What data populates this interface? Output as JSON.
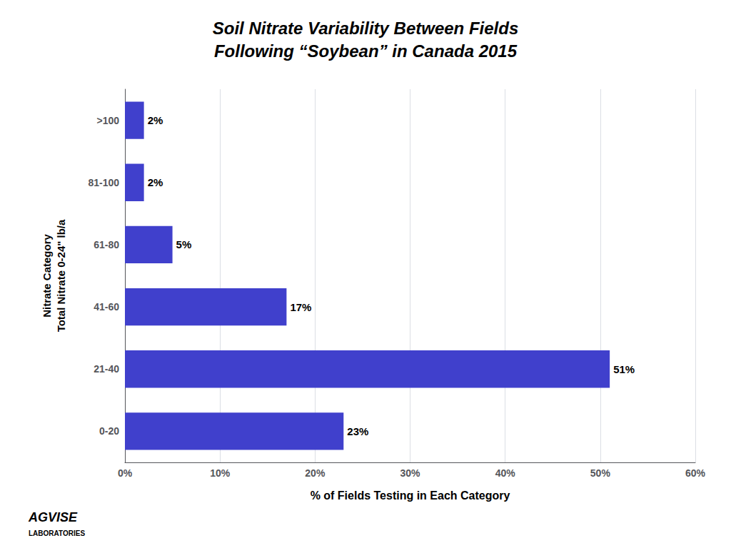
{
  "chart_data": {
    "type": "bar",
    "orientation": "horizontal",
    "title": "Soil Nitrate Variability Between Fields\nFollowing “Soybean” in Canada 2015",
    "xlabel": "% of Fields Testing in Each Category",
    "ylabel": "Nitrate Category\nTotal Nitrate 0-24\" lb/a",
    "categories": [
      "0-20",
      "21-40",
      "41-60",
      "61-80",
      "81-100",
      ">100"
    ],
    "values": [
      23,
      51,
      17,
      5,
      2,
      2
    ],
    "value_labels": [
      "23%",
      "51%",
      "17%",
      "5%",
      "2%",
      "2%"
    ],
    "data_labels": true,
    "color": "#4040cc",
    "xlim": [
      0,
      60
    ],
    "xticks": [
      {
        "value": 0,
        "label": "0%"
      },
      {
        "value": 10,
        "label": "10%"
      },
      {
        "value": 20,
        "label": "20%"
      },
      {
        "value": 30,
        "label": "30%"
      },
      {
        "value": 40,
        "label": "40%"
      },
      {
        "value": 50,
        "label": "50%"
      },
      {
        "value": 60,
        "label": "60%"
      }
    ],
    "grid": true,
    "annotations": [
      "AGVISE",
      "LABORATORIES"
    ]
  }
}
